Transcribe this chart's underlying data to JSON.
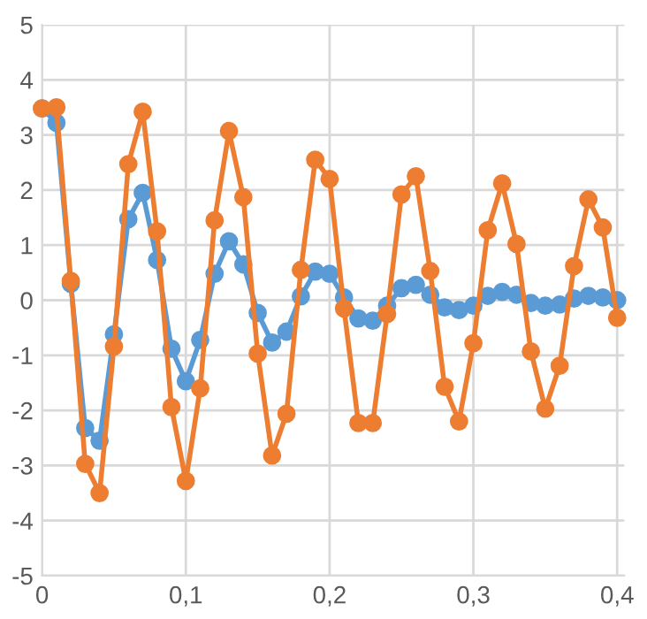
{
  "chart_data": {
    "type": "line",
    "x": [
      0,
      0.01,
      0.02,
      0.03,
      0.04,
      0.05,
      0.06,
      0.07,
      0.08,
      0.09,
      0.1,
      0.11,
      0.12,
      0.13,
      0.14,
      0.15,
      0.16,
      0.17,
      0.18,
      0.19,
      0.2,
      0.21,
      0.22,
      0.23,
      0.24,
      0.25,
      0.26,
      0.27,
      0.28,
      0.29,
      0.3,
      0.31,
      0.32,
      0.33,
      0.34,
      0.35,
      0.36,
      0.37,
      0.38,
      0.39,
      0.4
    ],
    "series": [
      {
        "color": "#5b9bd5",
        "values": [
          3.48,
          3.22,
          0.3,
          -2.32,
          -2.55,
          -0.62,
          1.47,
          1.95,
          0.73,
          -0.88,
          -1.47,
          -0.72,
          0.48,
          1.07,
          0.65,
          -0.23,
          -0.77,
          -0.57,
          0.07,
          0.52,
          0.48,
          0.05,
          -0.33,
          -0.37,
          -0.1,
          0.22,
          0.28,
          0.1,
          -0.13,
          -0.18,
          -0.1,
          0.08,
          0.15,
          0.1,
          -0.05,
          -0.1,
          -0.08,
          0.03,
          0.08,
          0.05,
          0.0
        ]
      },
      {
        "color": "#ed7d31",
        "values": [
          3.48,
          3.5,
          0.35,
          -2.97,
          -3.5,
          -0.84,
          2.47,
          3.42,
          1.25,
          -1.94,
          -3.28,
          -1.6,
          1.45,
          3.07,
          1.87,
          -0.97,
          -2.82,
          -2.06,
          0.55,
          2.55,
          2.2,
          -0.15,
          -2.23,
          -2.23,
          -0.25,
          1.92,
          2.25,
          0.53,
          -1.57,
          -2.2,
          -0.78,
          1.27,
          2.12,
          1.02,
          -0.93,
          -1.97,
          -1.19,
          0.62,
          1.83,
          1.32,
          -0.32
        ]
      }
    ],
    "xlim": [
      0,
      0.405
    ],
    "xticks": [
      0,
      {
        "value": 0.1,
        "label": "0,1"
      },
      {
        "value": 0.2,
        "label": "0,2"
      },
      {
        "value": 0.3,
        "label": "0,3"
      },
      {
        "value": 0.4,
        "label": "0,4"
      }
    ],
    "ylim": [
      -5,
      5
    ],
    "yticks": [
      -5,
      -4,
      -3,
      -2,
      -1,
      0,
      1,
      2,
      3,
      4,
      5
    ],
    "grid": true,
    "legend": false,
    "marker": "circle",
    "line_style": "solid"
  }
}
